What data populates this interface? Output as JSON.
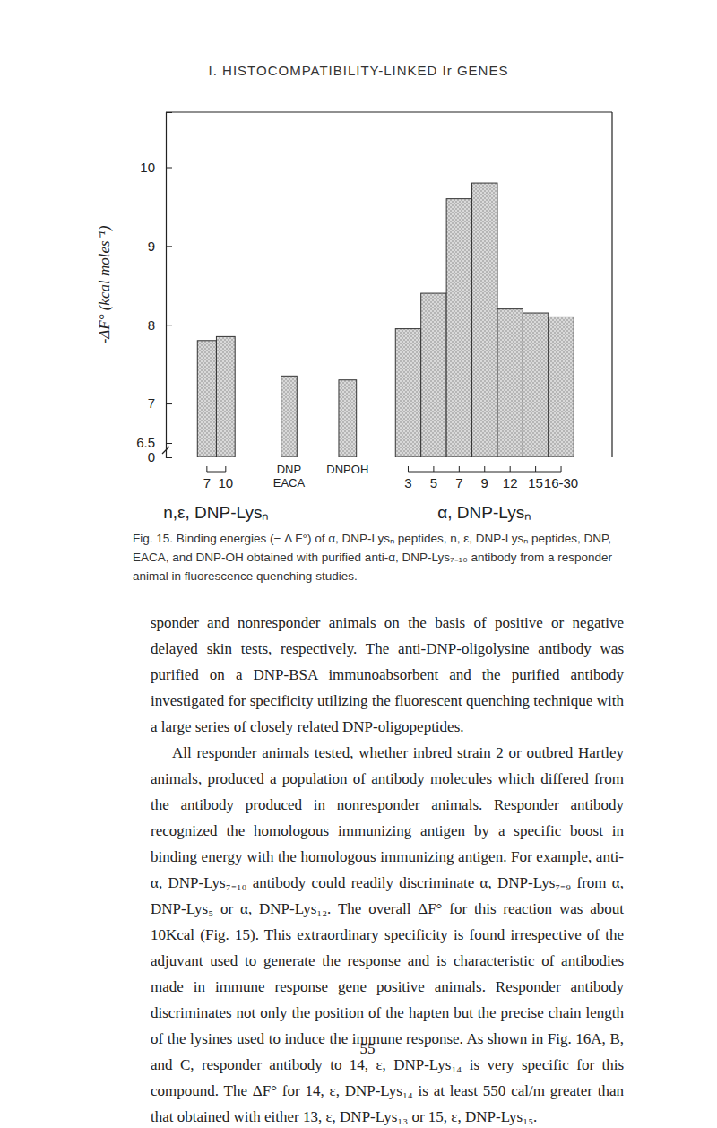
{
  "header": "I. HISTOCOMPATIBILITY-LINKED Ir GENES",
  "chart_data": {
    "type": "bar",
    "ylabel": "-ΔF° (kcal moles⁻¹)",
    "categories": [
      "7",
      "10",
      "DNP\nEACA",
      "DNPOH",
      "3",
      "5",
      "7",
      "9",
      "12",
      "15",
      "16-30"
    ],
    "values": [
      7.8,
      7.85,
      7.35,
      7.3,
      7.95,
      8.4,
      9.6,
      9.8,
      8.2,
      8.15,
      8.1
    ],
    "annotations": [
      "n,ε, DNP-Lysₙ",
      "α, DNP-Lysₙ"
    ],
    "color": "#d9d9d9",
    "ylim": [
      0,
      10.7
    ],
    "yticks": [
      0,
      6.5,
      7,
      8,
      9,
      10
    ]
  },
  "caption": "Fig. 15. Binding energies (− Δ F°) of α, DNP-Lysₙ peptides, n, ε, DNP-Lysₙ peptides, DNP, EACA, and DNP-OH obtained with purified anti-α, DNP-Lys₇₋₁₀ antibody from a responder animal in fluorescence quenching studies.",
  "paragraphs": [
    "sponder and nonresponder animals on the basis of positive or negative delayed skin tests, respectively. The anti-DNP-oligolysine antibody was purified on a DNP-BSA immunoabsorbent and the purified antibody investigated for specificity utilizing the fluorescent quenching technique with a large series of closely related DNP-oligopeptides.",
    "All responder animals tested, whether inbred strain 2 or outbred Hartley animals, produced a population of antibody molecules which differed from the antibody produced in nonresponder animals. Responder antibody recognized the homologous immunizing antigen by a specific boost in binding energy with the homologous immunizing antigen. For example, anti-α, DNP-Lys₇₋₁₀ antibody could readily discriminate α, DNP-Lys₇₋₉ from α, DNP-Lys₅ or α, DNP-Lys₁₂. The overall ΔF° for this reaction was about 10Kcal (Fig. 15). This extraordinary specificity is found irrespective of the adjuvant used to generate the response and is characteristic of antibodies made in immune response gene positive animals. Responder antibody discriminates not only the position of the hapten but the precise chain length of the lysines used to induce the immune response. As shown in Fig. 16A, B, and C, responder antibody to 14, ε, DNP-Lys₁₄ is very specific for this compound. The ΔF° for 14, ε, DNP-Lys₁₄ is at least 550 cal/m greater than that obtained with either 13, ε, DNP-Lys₁₃ or 15, ε, DNP-Lys₁₅."
  ],
  "page_number": "55"
}
